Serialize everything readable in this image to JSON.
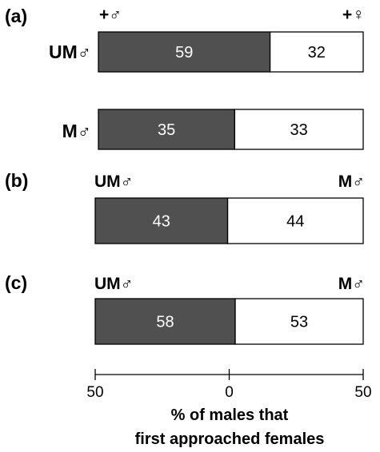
{
  "chart_data": {
    "type": "bar",
    "orientation": "horizontal-diverging",
    "xlabel_lines": [
      "% of males that",
      "first approached females"
    ],
    "x_ticks": [
      "50",
      "0",
      "50"
    ],
    "xlim": [
      -50,
      50
    ],
    "colors": {
      "left": "#505050",
      "right": "#ffffff",
      "edge": "#000000",
      "left_text": "#ffffff",
      "right_text": "#000000"
    },
    "panels": [
      {
        "label": "(a)",
        "left_end": "+♂",
        "right_end": "+♀",
        "bars": [
          {
            "label": "UM♂",
            "left": 59,
            "right": 32
          },
          {
            "label": "M♂",
            "left": 35,
            "right": 33
          }
        ]
      },
      {
        "label": "(b)",
        "left_end": "UM♂",
        "right_end": "M♂",
        "bars": [
          {
            "label": "",
            "left": 43,
            "right": 44
          }
        ]
      },
      {
        "label": "(c)",
        "left_end": "UM♂",
        "right_end": "M♂",
        "bars": [
          {
            "label": "",
            "left": 58,
            "right": 53
          }
        ]
      }
    ]
  }
}
